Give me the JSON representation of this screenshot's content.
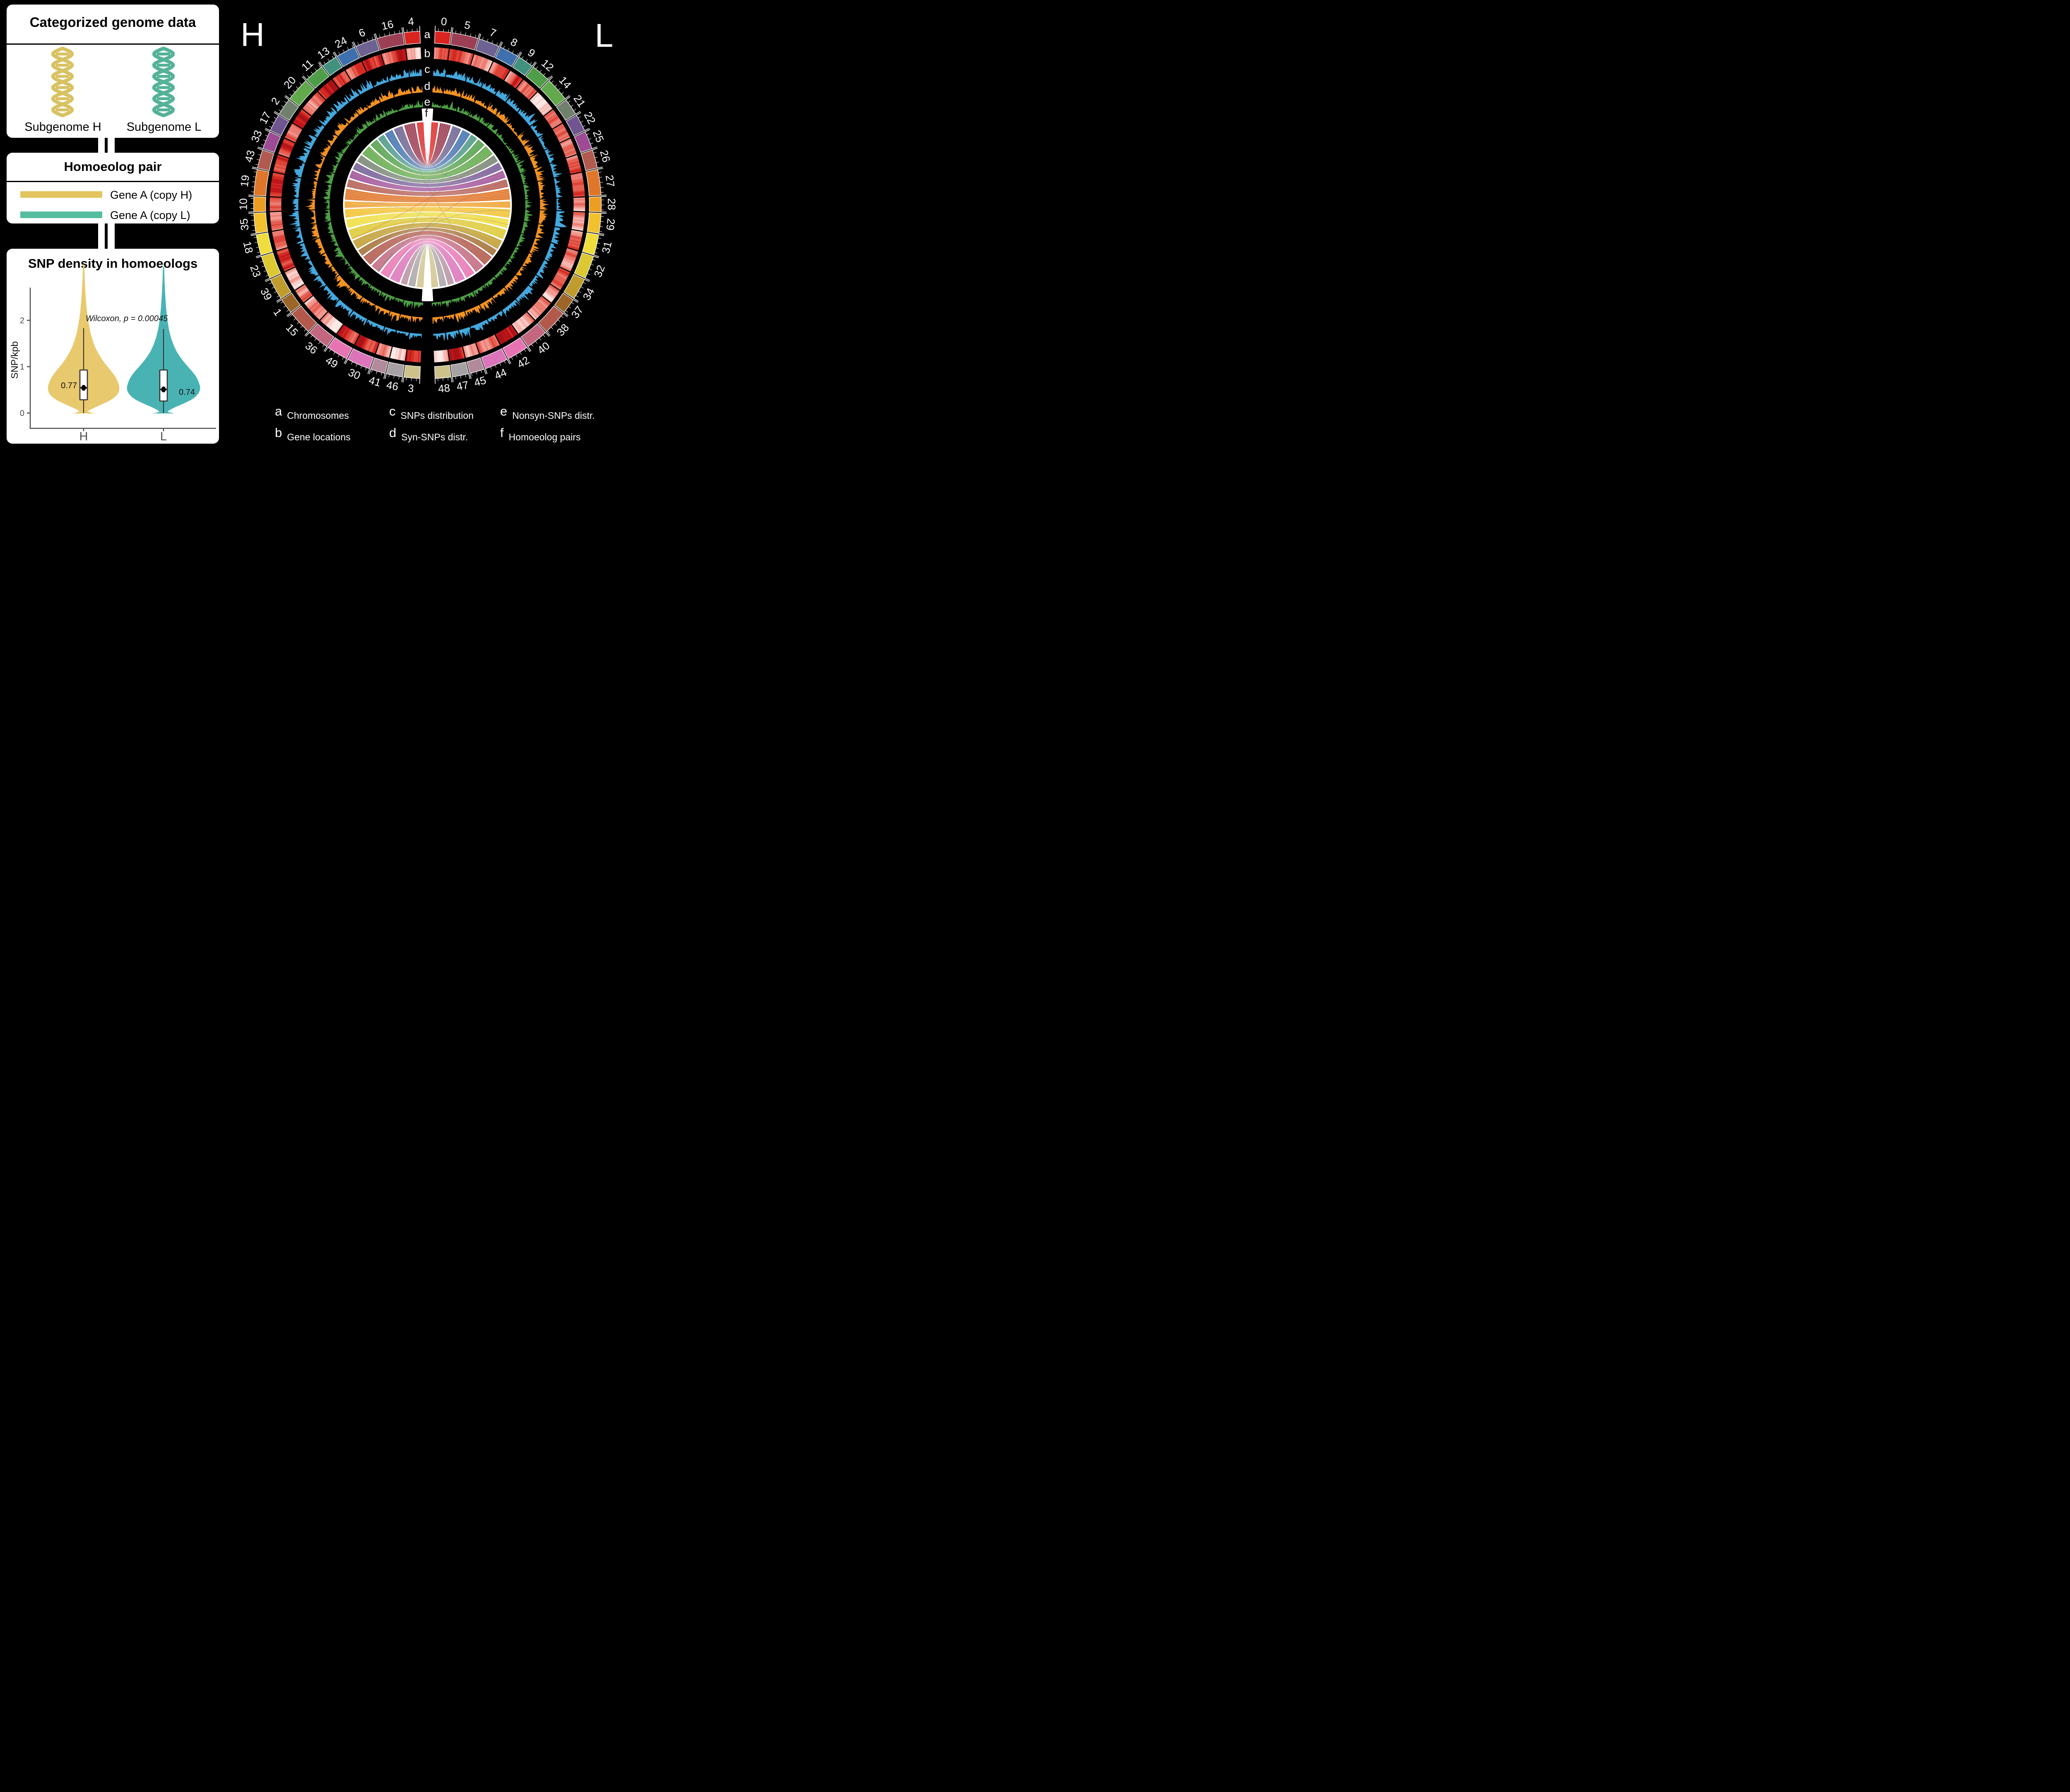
{
  "panels": {
    "categorized": {
      "title": "Categorized genome data",
      "subgenomes": [
        {
          "label": "Subgenome H",
          "color": "#d8c262"
        },
        {
          "label": "Subgenome L",
          "color": "#54b298"
        }
      ]
    },
    "homoeolog": {
      "title": "Homoeolog pair",
      "rows": [
        {
          "label": "Gene A (copy H)",
          "color": "#e2c55e"
        },
        {
          "label": "Gene A (copy L)",
          "color": "#54bd9f"
        }
      ]
    },
    "violin": {
      "title": "SNP density in homoeologs",
      "ylabel": "SNP/kpb",
      "yticks": [
        "0",
        "1",
        "2"
      ],
      "annotation": "Wilcoxon, p = 0.00045",
      "groups": [
        {
          "label": "H",
          "median": "0.77",
          "color": "#e9c96e"
        },
        {
          "label": "L",
          "median": "0.74",
          "color": "#49b3b4"
        }
      ]
    }
  },
  "circos": {
    "left_label": "H",
    "right_label": "L",
    "track_labels": [
      "a",
      "b",
      "c",
      "d",
      "e",
      "f"
    ],
    "h_order": [
      "4",
      "16",
      "6",
      "24",
      "13",
      "11",
      "20",
      "2",
      "17",
      "33",
      "43",
      "19",
      "10",
      "35",
      "18",
      "23",
      "39",
      "1",
      "15",
      "36",
      "49",
      "30",
      "41",
      "46",
      "3"
    ],
    "l_order": [
      "0",
      "5",
      "7",
      "8",
      "9",
      "12",
      "14",
      "21",
      "22",
      "25",
      "26",
      "27",
      "28",
      "29",
      "31",
      "32",
      "34",
      "37",
      "38",
      "40",
      "42",
      "44",
      "45",
      "47",
      "48"
    ],
    "pair_colors": [
      "#da2420",
      "#9c3e54",
      "#6d6291",
      "#3e70ae",
      "#41917f",
      "#4e9d48",
      "#62a94b",
      "#71806d",
      "#705591",
      "#9c4b94",
      "#b15a50",
      "#e0762a",
      "#ee9d23",
      "#f2c12e",
      "#eedd3d",
      "#dcc832",
      "#c09c2e",
      "#9d6527",
      "#b2594c",
      "#c2677f",
      "#e873b2",
      "#dc74b9",
      "#b28a9b",
      "#a7a1a3",
      "#cdc289"
    ],
    "track_colors": {
      "snp": "#45a8dd",
      "syn": "#f29222",
      "nonsyn": "#4e9e45",
      "gene_heat_max": "#c2161c"
    },
    "legend": [
      {
        "key": "a",
        "label": "Chromosomes"
      },
      {
        "key": "b",
        "label": "Gene locations"
      },
      {
        "key": "c",
        "label": "SNPs distribution"
      },
      {
        "key": "d",
        "label": "Syn-SNPs distr."
      },
      {
        "key": "e",
        "label": "Nonsyn-SNPs distr."
      },
      {
        "key": "f",
        "label": "Homoeolog pairs"
      }
    ]
  },
  "chart_data": [
    {
      "type": "area",
      "subtype": "violin-box",
      "title": "SNP density in homoeologs",
      "xlabel": "",
      "ylabel": "SNP/kpb",
      "ylim": [
        0,
        2.6
      ],
      "yticks": [
        0,
        1,
        2
      ],
      "categories": [
        "H",
        "L"
      ],
      "annotation": "Wilcoxon, p = 0.00045",
      "grid": false,
      "legend_position": "none",
      "series": [
        {
          "name": "H",
          "median_label": 0.77,
          "box": {
            "q1": 0.29,
            "q3": 0.93,
            "center_dot": 0.55,
            "whisker_low": 0.0,
            "whisker_high": 1.82
          },
          "density_peak_at": 0.45
        },
        {
          "name": "L",
          "median_label": 0.74,
          "box": {
            "q1": 0.26,
            "q3": 0.93,
            "center_dot": 0.52,
            "whisker_low": 0.0,
            "whisker_high": 1.8
          },
          "density_peak_at": 0.45
        }
      ]
    },
    {
      "type": "heatmap",
      "subtype": "circos",
      "title": "Circos of subgenome H (left half) vs subgenome L (right half)",
      "tracks": [
        {
          "id": "a",
          "label": "Chromosomes"
        },
        {
          "id": "b",
          "label": "Gene locations"
        },
        {
          "id": "c",
          "label": "SNPs distribution"
        },
        {
          "id": "d",
          "label": "Syn-SNPs distr."
        },
        {
          "id": "e",
          "label": "Nonsyn-SNPs distr."
        },
        {
          "id": "f",
          "label": "Homoeolog pairs"
        }
      ],
      "h_chromosome_order": [
        "4",
        "16",
        "6",
        "24",
        "13",
        "11",
        "20",
        "2",
        "17",
        "33",
        "43",
        "19",
        "10",
        "35",
        "18",
        "23",
        "39",
        "1",
        "15",
        "36",
        "49",
        "30",
        "41",
        "46",
        "3"
      ],
      "l_chromosome_order": [
        "0",
        "5",
        "7",
        "8",
        "9",
        "12",
        "14",
        "21",
        "22",
        "25",
        "26",
        "27",
        "28",
        "29",
        "31",
        "32",
        "34",
        "37",
        "38",
        "40",
        "42",
        "44",
        "45",
        "47",
        "48"
      ],
      "homoeologous_pairs": [
        [
          "4",
          "0"
        ],
        [
          "16",
          "5"
        ],
        [
          "6",
          "7"
        ],
        [
          "24",
          "8"
        ],
        [
          "13",
          "9"
        ],
        [
          "11",
          "12"
        ],
        [
          "20",
          "14"
        ],
        [
          "2",
          "21"
        ],
        [
          "17",
          "22"
        ],
        [
          "33",
          "25"
        ],
        [
          "43",
          "26"
        ],
        [
          "19",
          "27"
        ],
        [
          "10",
          "28"
        ],
        [
          "35",
          "29"
        ],
        [
          "18",
          "31"
        ],
        [
          "23",
          "32"
        ],
        [
          "39",
          "34"
        ],
        [
          "1",
          "37"
        ],
        [
          "15",
          "38"
        ],
        [
          "36",
          "40"
        ],
        [
          "49",
          "42"
        ],
        [
          "30",
          "44"
        ],
        [
          "41",
          "45"
        ],
        [
          "46",
          "47"
        ],
        [
          "3",
          "48"
        ]
      ]
    }
  ]
}
